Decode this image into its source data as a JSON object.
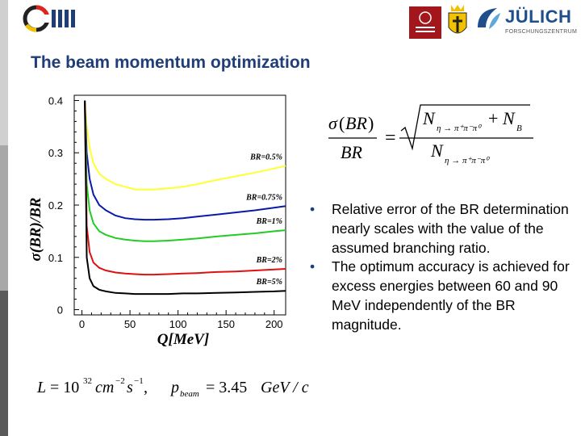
{
  "title": "The beam momentum optimization",
  "bullets": [
    "Relative error of the BR determination nearly scales with the value of the assumed branching ratio.",
    "The optimum accuracy is achieved for excess energies between 60 and 90 MeV independently of the BR magnitude."
  ],
  "logos": {
    "juelich_word": "JÜLICH",
    "juelich_sub": "FORSCHUNGSZENTRUM"
  },
  "colors": {
    "title": "#1f3e78",
    "bullet": "#1f3e78",
    "juelich": "#1f4e8c"
  },
  "chart_data": {
    "type": "line",
    "xlabel": "Q[MeV]",
    "ylabel": "σ(BR)/BR",
    "xlim": [
      -8,
      212
    ],
    "ylim": [
      -0.01,
      0.41
    ],
    "xticks": [
      0,
      50,
      100,
      150,
      200
    ],
    "yticks": [
      0,
      0.1,
      0.2,
      0.3,
      0.4
    ],
    "ytick_labels": [
      "0",
      "0.1",
      "0.2",
      "0.3",
      "0.4"
    ],
    "grid": false,
    "series": [
      {
        "name": "BR=0.5%",
        "color": "#ffff33",
        "x": [
          3,
          5,
          8,
          12,
          18,
          25,
          35,
          45,
          55,
          65,
          75,
          90,
          105,
          120,
          140,
          160,
          180,
          200,
          212
        ],
        "y": [
          0.4,
          0.35,
          0.31,
          0.28,
          0.26,
          0.25,
          0.24,
          0.235,
          0.23,
          0.23,
          0.23,
          0.232,
          0.235,
          0.24,
          0.248,
          0.255,
          0.262,
          0.27,
          0.275
        ]
      },
      {
        "name": "BR=0.75%",
        "color": "#0a1aa8",
        "x": [
          3,
          5,
          8,
          12,
          18,
          25,
          35,
          45,
          55,
          65,
          75,
          90,
          105,
          120,
          140,
          160,
          180,
          200,
          212
        ],
        "y": [
          0.4,
          0.3,
          0.25,
          0.22,
          0.2,
          0.19,
          0.18,
          0.175,
          0.173,
          0.172,
          0.172,
          0.173,
          0.175,
          0.178,
          0.182,
          0.186,
          0.19,
          0.195,
          0.198
        ]
      },
      {
        "name": "BR=1%",
        "color": "#22cc22",
        "x": [
          3,
          5,
          8,
          12,
          18,
          25,
          35,
          45,
          55,
          65,
          75,
          90,
          105,
          120,
          140,
          160,
          180,
          200,
          212
        ],
        "y": [
          0.4,
          0.24,
          0.19,
          0.165,
          0.15,
          0.143,
          0.137,
          0.134,
          0.132,
          0.131,
          0.131,
          0.132,
          0.134,
          0.136,
          0.14,
          0.143,
          0.146,
          0.15,
          0.152
        ]
      },
      {
        "name": "BR=2%",
        "color": "#dd1111",
        "x": [
          3,
          5,
          8,
          12,
          18,
          25,
          35,
          45,
          55,
          65,
          75,
          90,
          105,
          120,
          140,
          160,
          180,
          200,
          212
        ],
        "y": [
          0.4,
          0.16,
          0.11,
          0.09,
          0.08,
          0.075,
          0.071,
          0.069,
          0.068,
          0.067,
          0.067,
          0.068,
          0.069,
          0.07,
          0.072,
          0.073,
          0.075,
          0.077,
          0.078
        ]
      },
      {
        "name": "BR=5%",
        "color": "#000000",
        "x": [
          3,
          5,
          8,
          12,
          18,
          25,
          35,
          45,
          55,
          65,
          75,
          90,
          105,
          120,
          140,
          160,
          180,
          200,
          212
        ],
        "y": [
          0.4,
          0.1,
          0.06,
          0.045,
          0.038,
          0.035,
          0.032,
          0.031,
          0.03,
          0.03,
          0.03,
          0.03,
          0.031,
          0.031,
          0.032,
          0.033,
          0.034,
          0.035,
          0.036
        ]
      }
    ]
  }
}
